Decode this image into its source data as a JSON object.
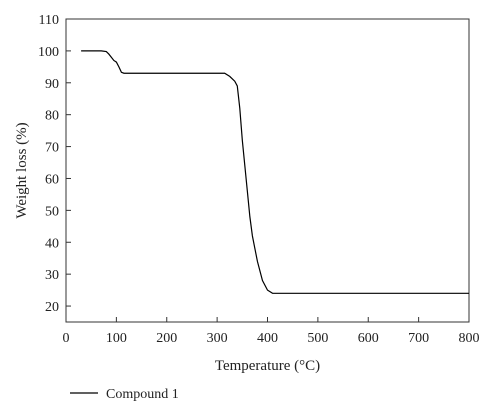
{
  "chart_data": {
    "type": "line",
    "title": "",
    "xlabel": "Temperature (°C)",
    "ylabel": "Weight loss (%)",
    "xlim": [
      0,
      800
    ],
    "ylim": [
      15,
      110
    ],
    "xticks": [
      0,
      100,
      200,
      300,
      400,
      500,
      600,
      700,
      800
    ],
    "yticks": [
      20,
      30,
      40,
      50,
      60,
      70,
      80,
      90,
      100,
      110
    ],
    "grid": false,
    "legend": "bottom-left",
    "series": [
      {
        "name": "Compound 1",
        "color": "#000000",
        "x": [
          30,
          50,
          70,
          80,
          85,
          90,
          95,
          100,
          105,
          110,
          115,
          150,
          200,
          250,
          300,
          315,
          325,
          335,
          340,
          345,
          350,
          355,
          360,
          365,
          370,
          380,
          390,
          400,
          410,
          420,
          450,
          500,
          600,
          700,
          800
        ],
        "y": [
          100,
          100,
          100,
          99.8,
          99,
          98,
          97,
          96.5,
          95,
          93.3,
          93,
          93,
          93,
          93,
          93,
          93,
          92,
          90.5,
          89,
          82,
          72,
          64,
          56,
          48,
          42,
          34,
          28,
          25,
          24,
          24,
          24,
          24,
          24,
          24,
          24
        ]
      }
    ]
  }
}
